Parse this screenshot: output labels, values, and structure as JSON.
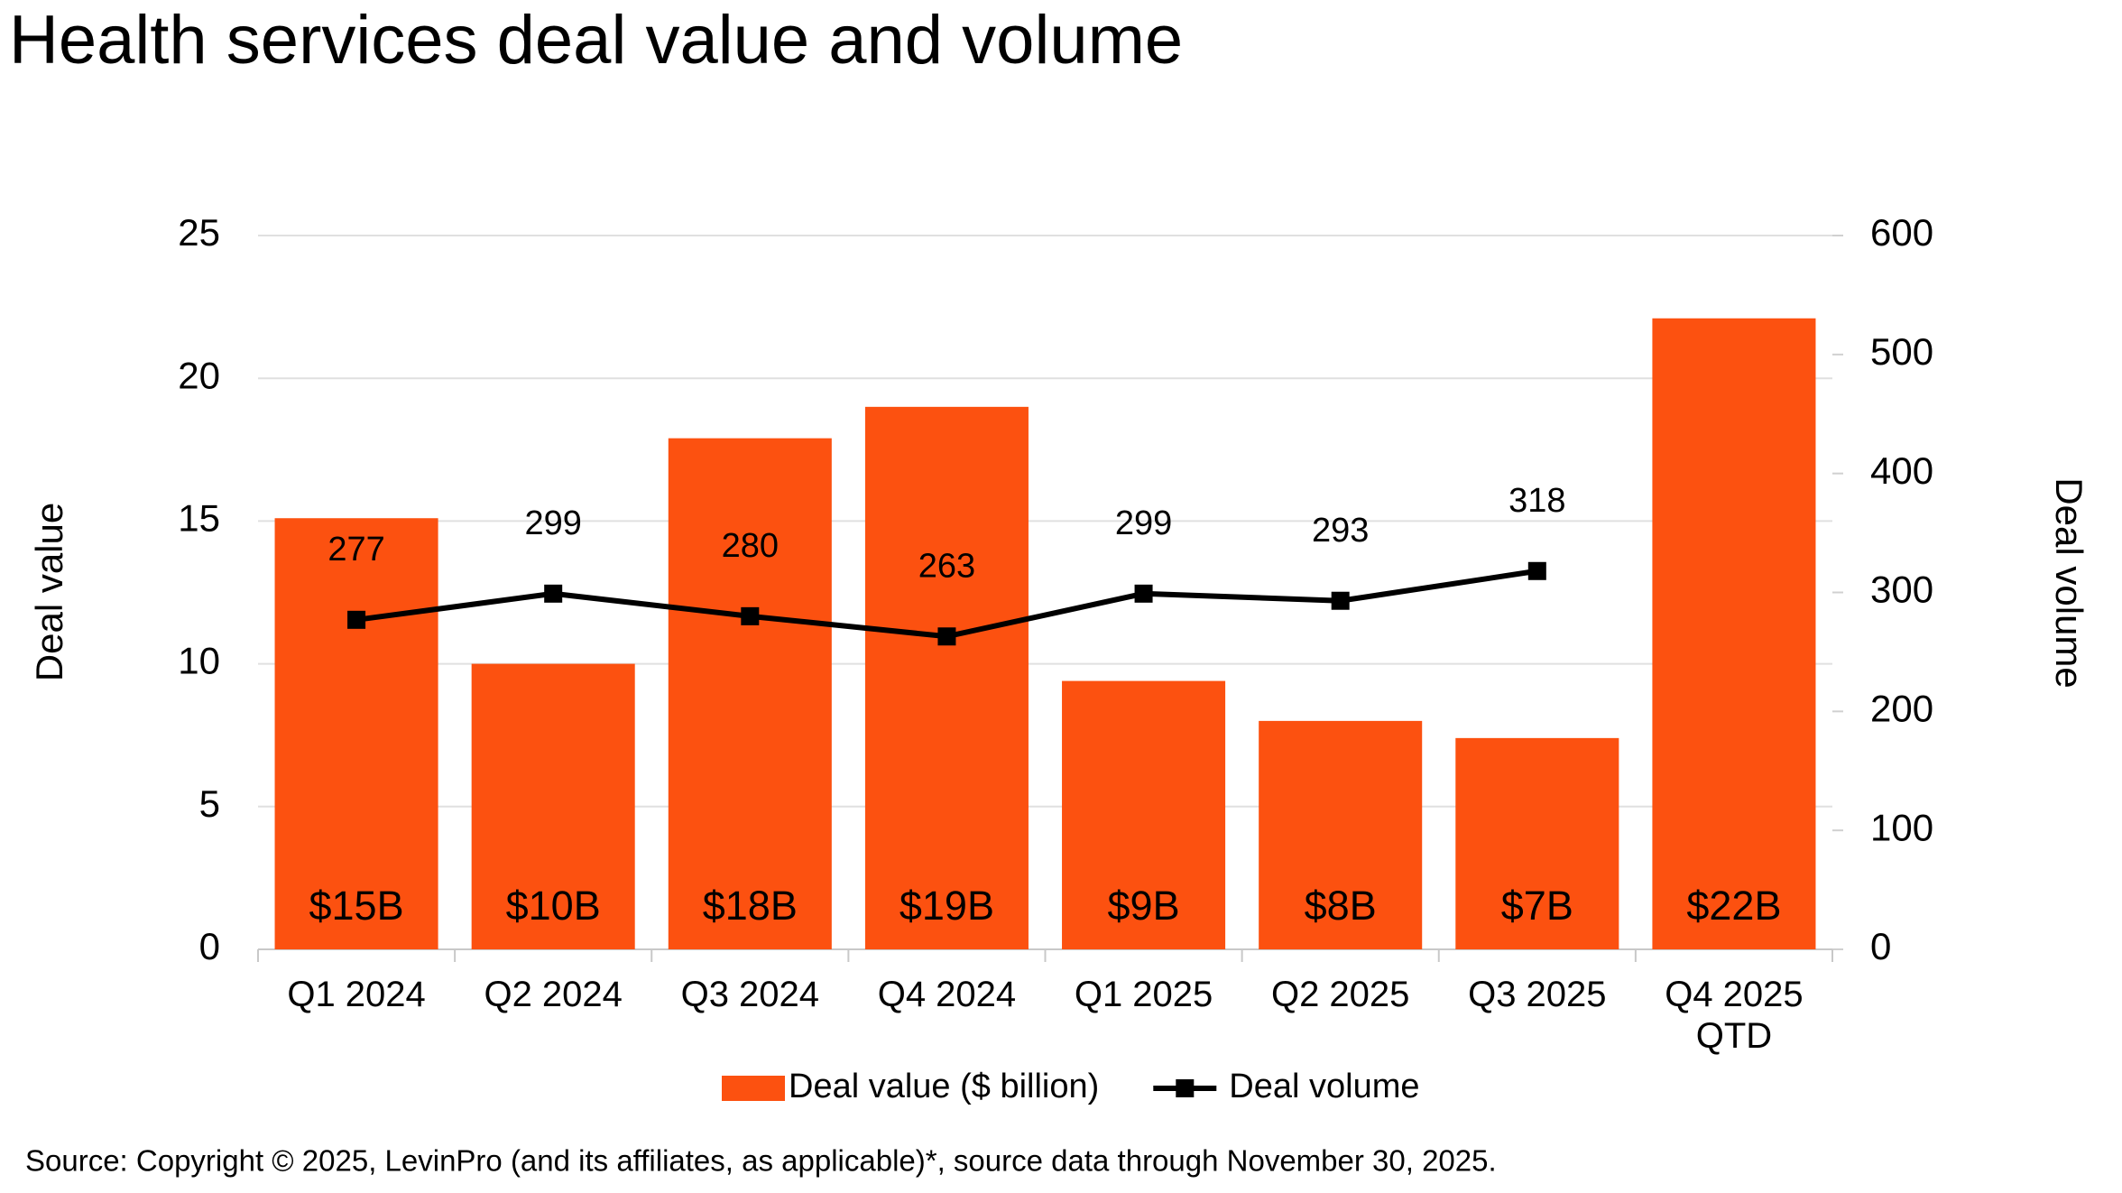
{
  "chart_data": {
    "type": "bar",
    "title": "Health services deal value and volume",
    "source": "Source: Copyright © 2025, LevinPro (and its affiliates, as applicable)*, source data through November 30, 2025.",
    "y_label": "Deal value",
    "y2_label": "Deal volume",
    "categories": [
      "Q1 2024",
      "Q2 2024",
      "Q3 2024",
      "Q4 2024",
      "Q1 2025",
      "Q2 2025",
      "Q3 2025",
      "Q4 2025\nQTD"
    ],
    "series": [
      {
        "name": "Deal value ($ billion)",
        "type": "bar",
        "color": "#fc5110",
        "values": [
          15.1,
          10.0,
          17.9,
          19.0,
          9.4,
          8.0,
          7.4,
          22.1
        ],
        "value_labels": [
          "$15B",
          "$10B",
          "$18B",
          "$19B",
          "$9B",
          "$8B",
          "$7B",
          "$22B"
        ]
      },
      {
        "name": "Deal volume",
        "type": "line",
        "axis": "y2",
        "color": "#000000",
        "values": [
          277,
          299,
          280,
          263,
          299,
          293,
          318,
          null
        ]
      }
    ],
    "ylim": [
      0,
      25
    ],
    "yticks": [
      0,
      5,
      10,
      15,
      20,
      25
    ],
    "y2lim": [
      0,
      600
    ],
    "y2ticks": [
      0,
      100,
      200,
      300,
      400,
      500,
      600
    ],
    "grid": true,
    "legend": "bottom"
  }
}
